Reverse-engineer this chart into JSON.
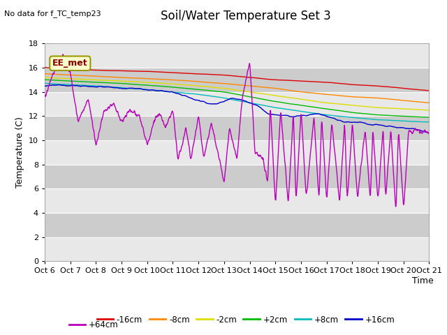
{
  "title": "Soil/Water Temperature Set 3",
  "subtitle": "No data for f_TC_temp23",
  "ylabel": "Temperature (C)",
  "xlabel": "Time",
  "annotation": "EE_met",
  "ylim": [
    0,
    18
  ],
  "yticks": [
    0,
    2,
    4,
    6,
    8,
    10,
    12,
    14,
    16,
    18
  ],
  "xtick_labels": [
    "Oct 6",
    "Oct 7",
    "Oct 8",
    "Oct 9",
    "Oct 10",
    "Oct 11",
    "Oct 12",
    "Oct 13",
    "Oct 14",
    "Oct 15",
    "Oct 16",
    "Oct 17",
    "Oct 18",
    "Oct 19",
    "Oct 20",
    "Oct 21"
  ],
  "series": [
    {
      "label": "-16cm",
      "color": "#dd0000"
    },
    {
      "label": "-8cm",
      "color": "#ff8800"
    },
    {
      "label": "-2cm",
      "color": "#dddd00"
    },
    {
      "label": "+2cm",
      "color": "#00bb00"
    },
    {
      "label": "+8cm",
      "color": "#00bbbb"
    },
    {
      "label": "+16cm",
      "color": "#0000cc"
    },
    {
      "label": "+64cm",
      "color": "#bb00bb"
    }
  ],
  "background_color": "#ffffff",
  "plot_bg_color": "#dddddd",
  "grid_color": "#ffffff",
  "title_fontsize": 12,
  "label_fontsize": 9,
  "tick_fontsize": 8
}
